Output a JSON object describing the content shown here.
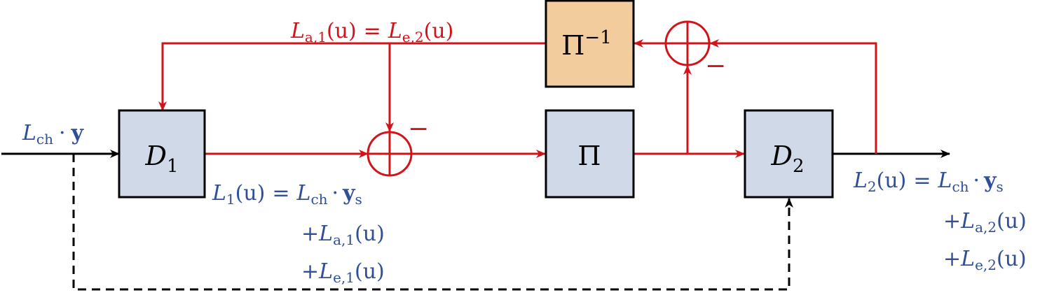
{
  "blocks": {
    "d1": {
      "name": "D",
      "sub": "1"
    },
    "d2": {
      "name": "D",
      "sub": "2"
    },
    "interleaver": {
      "name": "Π"
    },
    "deinterleaver": {
      "name": "Π",
      "sup": "−1"
    }
  },
  "signs": {
    "adder_bottom_minus": "−",
    "adder_top_minus": "−"
  },
  "labels": {
    "input": {
      "L": "L",
      "sub": "ch",
      "dot": "·",
      "vec": "y"
    },
    "feedback": {
      "left_L": "L",
      "left_sub": "a,1",
      "arg": "(u)",
      "eq": "=",
      "right_L": "L",
      "right_sub": "e,2"
    },
    "l1": {
      "line1_L": "L",
      "line1_sub": "1",
      "line1_arg": "(u)",
      "eq": "=",
      "ch_L": "L",
      "ch_sub": "ch",
      "dot": "·",
      "ys": "y",
      "ys_sub": "s",
      "line2_plus": "+",
      "line2_L": "L",
      "line2_sub": "a,1",
      "line2_arg": "(u)",
      "line3_plus": "+",
      "line3_L": "L",
      "line3_sub": "e,1",
      "line3_arg": "(u)"
    },
    "l2": {
      "line1_L": "L",
      "line1_sub": "2",
      "line1_arg": "(u)",
      "eq": "=",
      "ch_L": "L",
      "ch_sub": "ch",
      "dot": "·",
      "ys": "y",
      "ys_sub": "s",
      "line2_plus": "+",
      "line2_L": "L",
      "line2_sub": "a,2",
      "line2_arg": "(u)",
      "line3_plus": "+",
      "line3_L": "L",
      "line3_sub": "e,2",
      "line3_arg": "(u)"
    }
  },
  "colors": {
    "block_fill": "#cfd9e8",
    "deinterleaver_fill": "#f2cc9c",
    "signal_red": "#d0141a",
    "text_blue": "#2f4f99",
    "line_black": "#000000"
  }
}
